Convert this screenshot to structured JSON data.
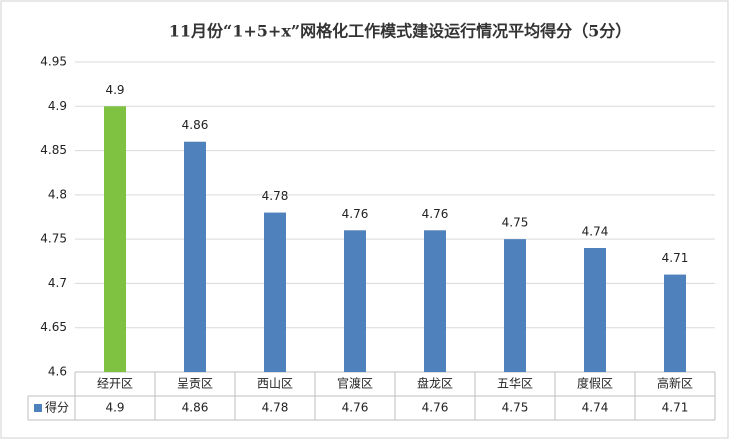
{
  "chart_data": {
    "type": "bar",
    "title": "11月份“1+5+x”网格化工作模式建设运行情况平均得分（5分）",
    "categories": [
      "经开区",
      "呈贡区",
      "西山区",
      "官渡区",
      "盘龙区",
      "五华区",
      "度假区",
      "高新区"
    ],
    "series": [
      {
        "name": "得分",
        "color": "#4f81bd",
        "colors": [
          "#7fc241",
          "#4f81bd",
          "#4f81bd",
          "#4f81bd",
          "#4f81bd",
          "#4f81bd",
          "#4f81bd",
          "#4f81bd"
        ],
        "values": [
          4.9,
          4.86,
          4.78,
          4.76,
          4.76,
          4.75,
          4.74,
          4.71
        ]
      }
    ],
    "ylim": [
      4.6,
      4.95
    ],
    "yticks": [
      4.6,
      4.65,
      4.7,
      4.75,
      4.8,
      4.85,
      4.9,
      4.95
    ],
    "grid": true
  }
}
